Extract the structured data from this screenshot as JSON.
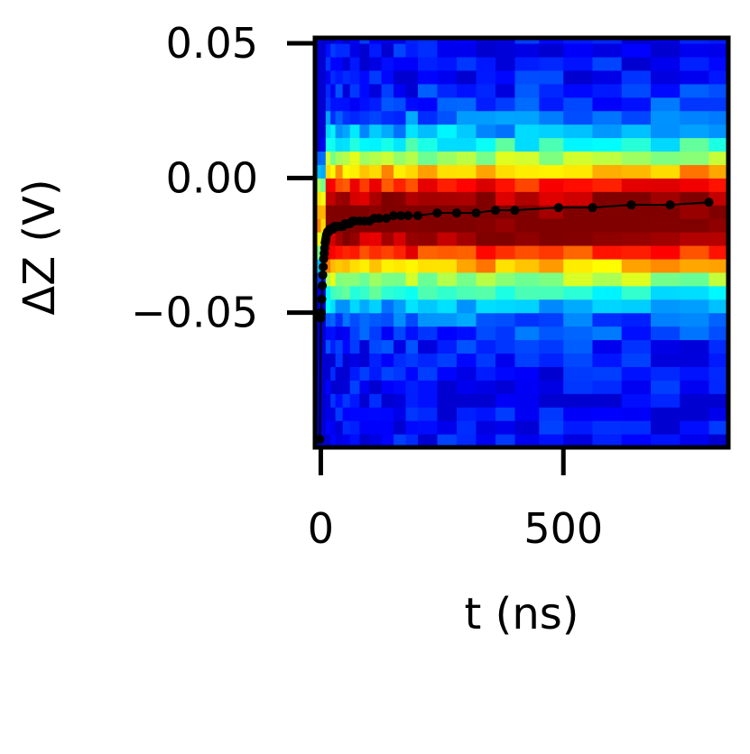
{
  "chart_data": {
    "type": "heatmap",
    "xlabel": "t (ns)",
    "ylabel": "ΔZ (V)",
    "xlim": [
      -12,
      840
    ],
    "ylim": [
      -0.1,
      0.052
    ],
    "x_ticks": [
      0,
      500
    ],
    "x_tick_labels": [
      "0",
      "500"
    ],
    "y_ticks": [
      0.05,
      0.0,
      -0.05
    ],
    "y_tick_labels": [
      "0.05",
      "0.00",
      "−0.05"
    ],
    "colormap": "jet",
    "grid": false,
    "legend": "none",
    "heatmap_bins": {
      "t_edges": [
        -12,
        0,
        10,
        20,
        30,
        45,
        60,
        80,
        100,
        125,
        150,
        175,
        200,
        240,
        280,
        320,
        360,
        400,
        450,
        500,
        560,
        620,
        680,
        740,
        800,
        840
      ],
      "dz_center": -0.015,
      "dz_width_sigma": 0.018,
      "dz_bin_size": 0.005
    },
    "series": [
      {
        "name": "",
        "x": [
          -2,
          0,
          1,
          2,
          3,
          4,
          5,
          6,
          7,
          8,
          9,
          10,
          11,
          12,
          14,
          16,
          18,
          20,
          22,
          25,
          28,
          32,
          36,
          40,
          45,
          50,
          55,
          60,
          65,
          70,
          80,
          90,
          100,
          110,
          120,
          135,
          150,
          165,
          180,
          200,
          240,
          280,
          320,
          360,
          400,
          490,
          560,
          640,
          720,
          800
        ],
        "y": [
          -0.097,
          -0.052,
          -0.05,
          -0.045,
          -0.04,
          -0.036,
          -0.033,
          -0.03,
          -0.028,
          -0.026,
          -0.024,
          -0.023,
          -0.022,
          -0.021,
          -0.02,
          -0.02,
          -0.019,
          -0.019,
          -0.019,
          -0.019,
          -0.018,
          -0.018,
          -0.018,
          -0.018,
          -0.018,
          -0.017,
          -0.017,
          -0.017,
          -0.016,
          -0.016,
          -0.016,
          -0.016,
          -0.016,
          -0.015,
          -0.015,
          -0.015,
          -0.014,
          -0.014,
          -0.014,
          -0.014,
          -0.013,
          -0.013,
          -0.013,
          -0.012,
          -0.012,
          -0.011,
          -0.011,
          -0.01,
          -0.01,
          -0.009
        ]
      }
    ]
  }
}
